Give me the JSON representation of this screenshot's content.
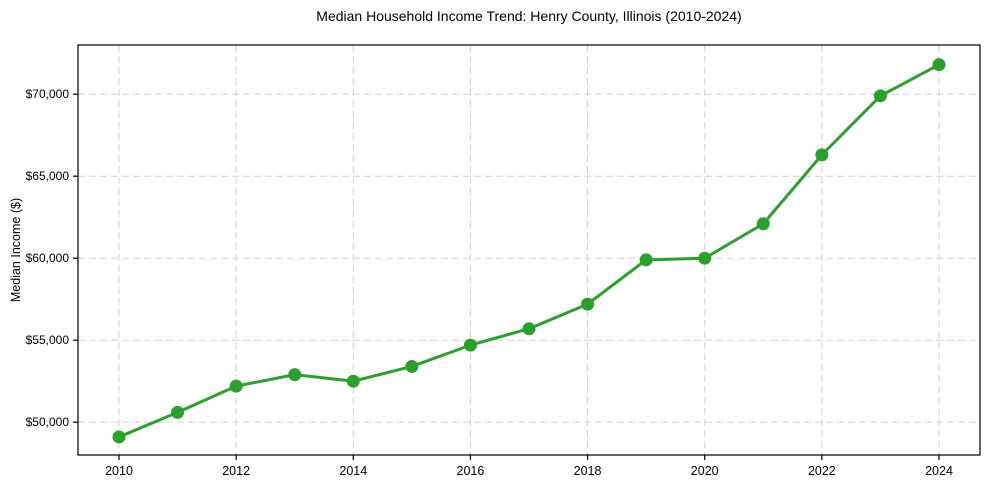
{
  "chart_data": {
    "type": "line",
    "title": "Median Household Income Trend: Henry County, Illinois (2010-2024)",
    "xlabel": "",
    "ylabel": "Median Income ($)",
    "x": [
      2010,
      2011,
      2012,
      2013,
      2014,
      2015,
      2016,
      2017,
      2018,
      2019,
      2020,
      2021,
      2022,
      2023,
      2024
    ],
    "y": [
      49100,
      50600,
      52200,
      52900,
      52500,
      53400,
      54700,
      55700,
      57200,
      59900,
      60000,
      62100,
      66300,
      69900,
      71800
    ],
    "xlim": [
      2009.3,
      2024.7
    ],
    "ylim": [
      48000,
      73000
    ],
    "x_ticks": [
      2010,
      2012,
      2014,
      2016,
      2018,
      2020,
      2022,
      2024
    ],
    "x_tick_labels": [
      "2010",
      "2012",
      "2014",
      "2016",
      "2018",
      "2020",
      "2022",
      "2024"
    ],
    "y_ticks": [
      50000,
      55000,
      60000,
      65000,
      70000
    ],
    "y_tick_labels": [
      "$50,000",
      "$55,000",
      "$60,000",
      "$65,000",
      "$70,000"
    ],
    "grid": true,
    "legend_position": "none",
    "colors": {
      "line": "#2ca02c",
      "marker": "#2ca02c",
      "grid": "#d2d2d2",
      "spine": "#000000",
      "background": "#ffffff"
    },
    "marker_style": "circle",
    "marker_radius": 6.5,
    "line_width": 3
  }
}
